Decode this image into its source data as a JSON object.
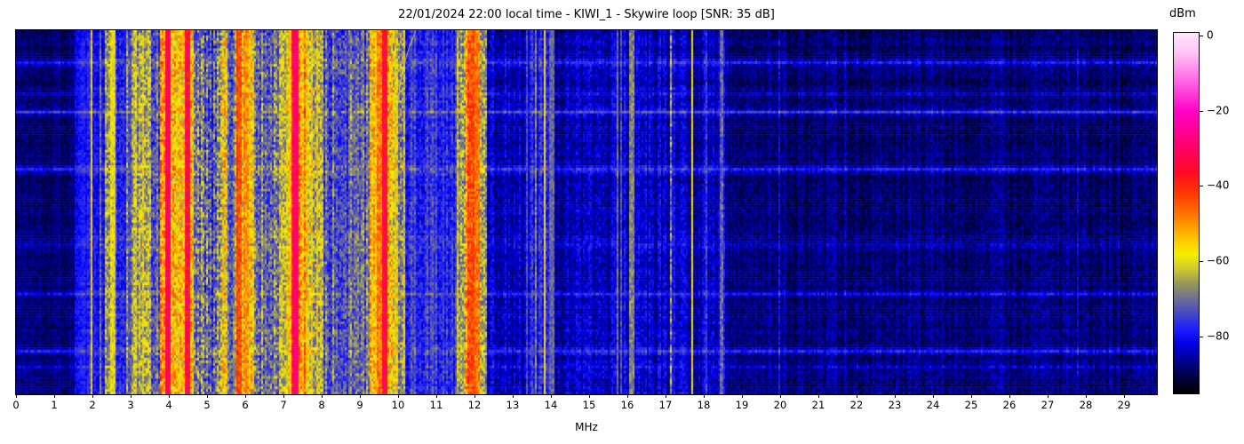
{
  "title": "22/01/2024 22:00 local time - KIWI_1 - Skywire loop [SNR: 35 dB]",
  "axes": {
    "x_label": "MHz",
    "x_ticks": [
      0,
      1,
      2,
      3,
      4,
      5,
      6,
      7,
      8,
      9,
      10,
      11,
      12,
      13,
      14,
      15,
      16,
      17,
      18,
      19,
      20,
      21,
      22,
      23,
      24,
      25,
      26,
      27,
      28,
      29
    ]
  },
  "colorbar": {
    "label": "dBm",
    "vmin": -95,
    "vmax": 1,
    "ticks": [
      {
        "value": 0,
        "label": "0"
      },
      {
        "value": -20,
        "label": "−20"
      },
      {
        "value": -40,
        "label": "−40"
      },
      {
        "value": -60,
        "label": "−60"
      },
      {
        "value": -80,
        "label": "−80"
      }
    ]
  },
  "chart_data": {
    "type": "heatmap",
    "description": "HF waterfall spectrogram 0–29.8 MHz (frequency on x, time on y, power in dBm as color). Strong broadcast/utility bands below ~12 MHz, quiet dark noise floor above ~18.5 MHz, horizontal noise-burst streaks across all frequencies.",
    "x_range_mhz": [
      0,
      29.84
    ],
    "value_range_dbm": [
      -95,
      1
    ],
    "seed": 1337,
    "rows": 140,
    "cols": 642,
    "colormap": [
      {
        "v": -95,
        "c": "#000000"
      },
      {
        "v": -90,
        "c": "#000050"
      },
      {
        "v": -86,
        "c": "#000096"
      },
      {
        "v": -82,
        "c": "#0000e6"
      },
      {
        "v": -78,
        "c": "#1e1eff"
      },
      {
        "v": -74,
        "c": "#4646c8"
      },
      {
        "v": -70,
        "c": "#6e6e96"
      },
      {
        "v": -66,
        "c": "#96965a"
      },
      {
        "v": -62,
        "c": "#cdc832"
      },
      {
        "v": -58,
        "c": "#f5f000"
      },
      {
        "v": -54,
        "c": "#ffc800"
      },
      {
        "v": -48,
        "c": "#ff7d00"
      },
      {
        "v": -42,
        "c": "#ff3c00"
      },
      {
        "v": -36,
        "c": "#ff0a28"
      },
      {
        "v": -28,
        "c": "#ff0078"
      },
      {
        "v": -20,
        "c": "#ff00c8"
      },
      {
        "v": -12,
        "c": "#ff64e6"
      },
      {
        "v": -4,
        "c": "#ffc8f5"
      },
      {
        "v": 1,
        "c": "#ffe6ff"
      }
    ],
    "bands": [
      {
        "f0": 0.0,
        "f1": 1.55,
        "level": -88,
        "var": 3,
        "colvar": 2
      },
      {
        "f0": 1.55,
        "f1": 1.85,
        "level": -80,
        "var": 3,
        "colvar": 2
      },
      {
        "f0": 1.85,
        "f1": 2.33,
        "level": -80,
        "var": 4,
        "colvar": 3
      },
      {
        "f0": 2.33,
        "f1": 2.62,
        "level": -66,
        "var": 8,
        "colvar": 6
      },
      {
        "f0": 2.62,
        "f1": 3.02,
        "level": -77,
        "var": 5,
        "colvar": 4
      },
      {
        "f0": 3.02,
        "f1": 3.28,
        "level": -65,
        "var": 8,
        "colvar": 5
      },
      {
        "f0": 3.28,
        "f1": 3.55,
        "level": -60,
        "var": 8,
        "colvar": 6
      },
      {
        "f0": 3.55,
        "f1": 3.75,
        "level": -72,
        "var": 7,
        "colvar": 5
      },
      {
        "f0": 3.75,
        "f1": 4.65,
        "level": -52,
        "var": 9,
        "colvar": 6
      },
      {
        "f0": 4.65,
        "f1": 5.35,
        "level": -72,
        "var": 9,
        "colvar": 7
      },
      {
        "f0": 5.35,
        "f1": 5.55,
        "level": -62,
        "var": 10,
        "colvar": 8
      },
      {
        "f0": 5.55,
        "f1": 5.76,
        "level": -70,
        "var": 7,
        "colvar": 5
      },
      {
        "f0": 5.76,
        "f1": 5.86,
        "level": -46,
        "var": 6,
        "colvar": 4
      },
      {
        "f0": 5.86,
        "f1": 6.25,
        "level": -55,
        "var": 8,
        "colvar": 6
      },
      {
        "f0": 6.25,
        "f1": 6.9,
        "level": -70,
        "var": 8,
        "colvar": 7
      },
      {
        "f0": 6.9,
        "f1": 7.2,
        "level": -59,
        "var": 8,
        "colvar": 5
      },
      {
        "f0": 7.2,
        "f1": 7.38,
        "level": -37,
        "var": 6,
        "colvar": 4
      },
      {
        "f0": 7.38,
        "f1": 7.62,
        "level": -52,
        "var": 8,
        "colvar": 5
      },
      {
        "f0": 7.62,
        "f1": 8.05,
        "level": -62,
        "var": 8,
        "colvar": 6
      },
      {
        "f0": 8.05,
        "f1": 9.25,
        "level": -72,
        "var": 7,
        "colvar": 6
      },
      {
        "f0": 9.25,
        "f1": 9.95,
        "level": -56,
        "var": 8,
        "colvar": 6
      },
      {
        "f0": 9.95,
        "f1": 10.18,
        "level": -64,
        "var": 8,
        "colvar": 6
      },
      {
        "f0": 10.18,
        "f1": 11.55,
        "level": -77,
        "var": 5,
        "colvar": 4
      },
      {
        "f0": 11.55,
        "f1": 11.78,
        "level": -64,
        "var": 8,
        "colvar": 6
      },
      {
        "f0": 11.78,
        "f1": 12.12,
        "level": -50,
        "var": 8,
        "colvar": 5
      },
      {
        "f0": 12.12,
        "f1": 12.3,
        "level": -64,
        "var": 8,
        "colvar": 5
      },
      {
        "f0": 12.3,
        "f1": 13.45,
        "level": -84,
        "var": 4,
        "colvar": 3
      },
      {
        "f0": 13.45,
        "f1": 14.1,
        "level": -80,
        "var": 5,
        "colvar": 5
      },
      {
        "f0": 14.1,
        "f1": 15.6,
        "level": -85,
        "var": 4,
        "colvar": 3
      },
      {
        "f0": 15.6,
        "f1": 18.55,
        "level": -84,
        "var": 4,
        "colvar": 4
      },
      {
        "f0": 18.55,
        "f1": 29.9,
        "level": -88,
        "var": 3.5,
        "colvar": 2.5
      }
    ],
    "carriers": [
      {
        "f": 1.94,
        "hw": 0.02,
        "level": -58,
        "flicker": 6
      },
      {
        "f": 2.17,
        "hw": 0.02,
        "level": -70,
        "flicker": 6
      },
      {
        "f": 2.5,
        "hw": 0.04,
        "level": -60,
        "flicker": 6
      },
      {
        "f": 2.86,
        "hw": 0.02,
        "level": -66,
        "flicker": 8
      },
      {
        "f": 3.1,
        "hw": 0.02,
        "level": -62,
        "flicker": 6
      },
      {
        "f": 3.93,
        "hw": 0.025,
        "level": -31,
        "flicker": 5
      },
      {
        "f": 4.47,
        "hw": 0.025,
        "level": -34,
        "flicker": 8
      },
      {
        "f": 5.8,
        "hw": 0.03,
        "level": -44,
        "flicker": 5
      },
      {
        "f": 6.0,
        "hw": 0.04,
        "level": -50,
        "flicker": 6
      },
      {
        "f": 7.28,
        "hw": 0.05,
        "level": -29,
        "flicker": 4
      },
      {
        "f": 9.47,
        "hw": 0.03,
        "level": -48,
        "flicker": 6
      },
      {
        "f": 9.6,
        "hw": 0.025,
        "level": -34,
        "flicker": 6
      },
      {
        "f": 11.9,
        "hw": 0.03,
        "level": -44,
        "flicker": 6
      },
      {
        "f": 12.05,
        "hw": 0.03,
        "level": -48,
        "flicker": 6
      },
      {
        "f": 13.35,
        "hw": 0.015,
        "level": -74,
        "flicker": 4
      },
      {
        "f": 13.57,
        "hw": 0.015,
        "level": -68,
        "flicker": 5
      },
      {
        "f": 13.82,
        "hw": 0.02,
        "level": -57,
        "flicker": 4
      },
      {
        "f": 14.0,
        "hw": 0.04,
        "level": -71,
        "flicker": 4
      },
      {
        "f": 15.7,
        "hw": 0.02,
        "level": -70,
        "flicker": 4
      },
      {
        "f": 15.78,
        "hw": 0.015,
        "level": -73,
        "flicker": 4
      },
      {
        "f": 16.1,
        "hw": 0.025,
        "level": -68,
        "flicker": 5
      },
      {
        "f": 17.1,
        "hw": 0.02,
        "level": -67,
        "flicker": 10
      },
      {
        "f": 17.65,
        "hw": 0.02,
        "level": -57,
        "flicker": 4
      },
      {
        "f": 18.05,
        "hw": 0.015,
        "level": -75,
        "flicker": 5
      },
      {
        "f": 18.4,
        "hw": 0.02,
        "level": -72,
        "flicker": 5
      },
      {
        "f": 18.47,
        "hw": 0.015,
        "level": -70,
        "flicker": 6
      }
    ],
    "streak_rows": [
      {
        "frac": 0.088,
        "boost": 10
      },
      {
        "frac": 0.171,
        "boost": 5
      },
      {
        "frac": 0.224,
        "boost": 12
      },
      {
        "frac": 0.375,
        "boost": 10
      },
      {
        "frac": 0.585,
        "boost": 4
      },
      {
        "frac": 0.724,
        "boost": 7
      },
      {
        "frac": 0.876,
        "boost": 10
      },
      {
        "frac": 0.92,
        "boost": 6
      }
    ],
    "annotations": [
      {
        "type": "ionosonde-chirp",
        "f_start_mhz": 10.46,
        "f_end_mhz": 10.0,
        "y_frac_start": 0.0,
        "y_frac_end": 0.19,
        "color": "#e6d24b"
      }
    ]
  }
}
